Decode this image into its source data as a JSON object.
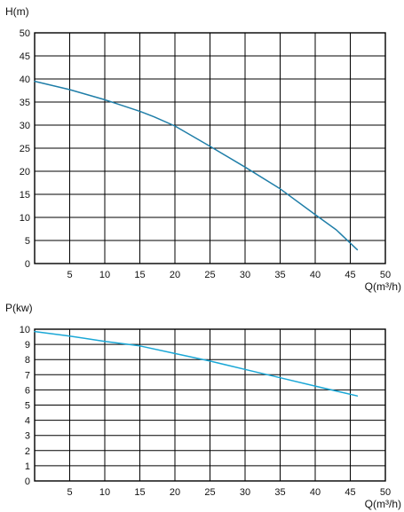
{
  "chart_data": [
    {
      "type": "line",
      "ylabel": "H(m)",
      "xlabel": "Q(m³/h)",
      "xlim": [
        0,
        50
      ],
      "ylim": [
        0,
        50
      ],
      "x_ticks": [
        "5",
        "10",
        "15",
        "20",
        "25",
        "30",
        "35",
        "40",
        "45",
        "50"
      ],
      "y_ticks": [
        "0",
        "5",
        "10",
        "15",
        "20",
        "25",
        "30",
        "35",
        "40",
        "45",
        "50"
      ],
      "grid": true,
      "line_color": "#1f7ea8",
      "series": [
        {
          "x": [
            0,
            5,
            10,
            15,
            17,
            20,
            25,
            30,
            35,
            40,
            43,
            46
          ],
          "y": [
            39.5,
            37.7,
            35.5,
            33,
            31.8,
            29.8,
            25.4,
            20.9,
            16.2,
            10.6,
            7.3,
            3
          ]
        }
      ]
    },
    {
      "type": "line",
      "ylabel": "P(kw)",
      "xlabel": "Q(m³/h)",
      "xlim": [
        0,
        50
      ],
      "ylim": [
        0,
        10
      ],
      "x_ticks": [
        "5",
        "10",
        "15",
        "20",
        "25",
        "30",
        "35",
        "40",
        "45",
        "50"
      ],
      "y_ticks": [
        "0",
        "1",
        "2",
        "3",
        "4",
        "5",
        "6",
        "7",
        "8",
        "9",
        "10"
      ],
      "grid": true,
      "line_color": "#1aa7d6",
      "series": [
        {
          "x": [
            0,
            5,
            10,
            15,
            20,
            25,
            30,
            35,
            40,
            46
          ],
          "y": [
            9.85,
            9.55,
            9.2,
            8.9,
            8.4,
            7.9,
            7.35,
            6.8,
            6.25,
            5.6
          ]
        }
      ]
    }
  ]
}
